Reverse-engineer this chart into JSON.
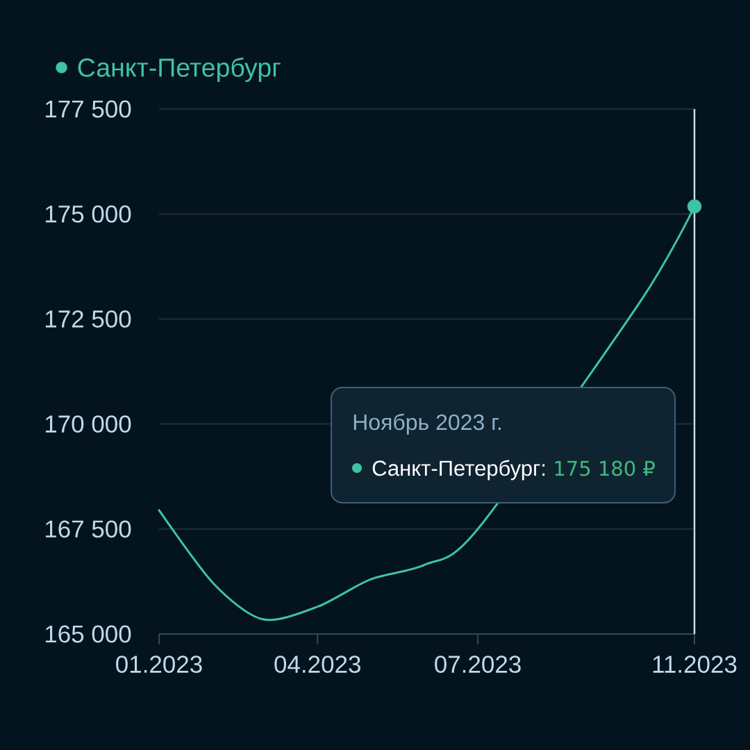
{
  "chart_data": {
    "type": "line",
    "x": [
      "2023-01",
      "2023-02",
      "2023-03",
      "2023-04",
      "2023-05",
      "2023-06",
      "2023-07",
      "2023-08",
      "2023-09",
      "2023-10",
      "2023-11"
    ],
    "series": [
      {
        "name": "Санкт-Петербург",
        "color": "#3fc3a2",
        "values": [
          167950,
          166200,
          165350,
          165650,
          166300,
          166650,
          167500,
          null,
          null,
          172900,
          175180
        ]
      },
      {
        "type": "scatter",
        "color": "#3fc3a2",
        "x": [
          "2023-11"
        ],
        "values": [
          175180
        ],
        "marker": "circle"
      }
    ],
    "xlim": [
      "2023-01",
      "2023-11"
    ],
    "xticks": [
      {
        "value": "2023-01",
        "label": "01.2023"
      },
      {
        "value": "2023-04",
        "label": "04.2023"
      },
      {
        "value": "2023-07",
        "label": "07.2023"
      },
      {
        "value": "2023-11",
        "label": "11.2023"
      }
    ],
    "ylim": [
      165000,
      177500
    ],
    "yticks": [
      {
        "value": 165000,
        "label": "165 000"
      },
      {
        "value": 167500,
        "label": "167 500"
      },
      {
        "value": 170000,
        "label": "170 000"
      },
      {
        "value": 172500,
        "label": "172 500"
      },
      {
        "value": 175000,
        "label": "175 000"
      },
      {
        "value": 177500,
        "label": "177 500"
      }
    ],
    "grid": "y",
    "legend": "top left",
    "ref_lines": [
      {
        "axis": "x",
        "value": "2023-11",
        "color": "#c6dcec"
      }
    ],
    "annotations": [
      "Ноябрь 2023 г.",
      "Санкт-Петербург:",
      "175 180 ₽"
    ]
  }
}
